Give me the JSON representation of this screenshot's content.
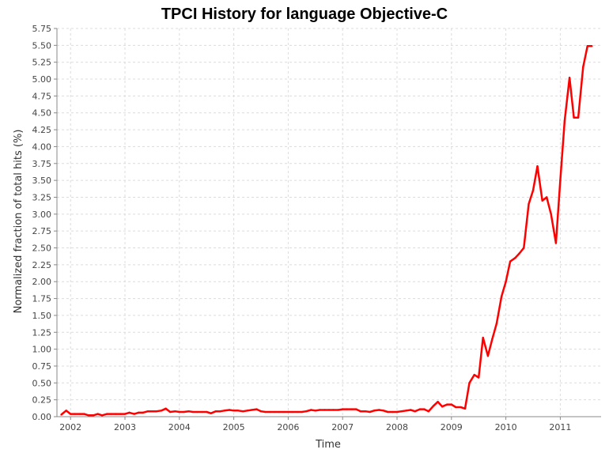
{
  "chart_data": {
    "type": "line",
    "title": "TPCI History for language Objective-C",
    "xlabel": "Time",
    "ylabel": "Normalized fraction of total hits (%)",
    "xlim": [
      2001.75,
      2011.75
    ],
    "ylim": [
      0,
      5.75
    ],
    "x_ticks": [
      "2002",
      "2003",
      "2004",
      "2005",
      "2006",
      "2007",
      "2008",
      "2009",
      "2010",
      "2011"
    ],
    "y_ticks": [
      "0.00",
      "0.25",
      "0.50",
      "0.75",
      "1.00",
      "1.25",
      "1.50",
      "1.75",
      "2.00",
      "2.25",
      "2.50",
      "2.75",
      "3.00",
      "3.25",
      "3.50",
      "3.75",
      "4.00",
      "4.25",
      "4.50",
      "4.75",
      "5.00",
      "5.25",
      "5.50",
      "5.75"
    ],
    "grid": true,
    "series_color": "#ff0000",
    "series": [
      {
        "x": [
          2001.83,
          2001.92,
          2002.0,
          2002.08,
          2002.17,
          2002.25,
          2002.33,
          2002.42,
          2002.5,
          2002.58,
          2002.67,
          2002.75,
          2002.83,
          2002.92,
          2003.0,
          2003.08,
          2003.17,
          2003.25,
          2003.33,
          2003.42,
          2003.5,
          2003.58,
          2003.67,
          2003.75,
          2003.83,
          2003.92,
          2004.0,
          2004.08,
          2004.17,
          2004.25,
          2004.33,
          2004.42,
          2004.5,
          2004.58,
          2004.67,
          2004.75,
          2004.83,
          2004.92,
          2005.0,
          2005.08,
          2005.17,
          2005.25,
          2005.33,
          2005.42,
          2005.5,
          2005.58,
          2005.67,
          2005.75,
          2005.83,
          2005.92,
          2006.0,
          2006.08,
          2006.17,
          2006.25,
          2006.33,
          2006.42,
          2006.5,
          2006.58,
          2006.67,
          2006.75,
          2006.83,
          2006.92,
          2007.0,
          2007.08,
          2007.17,
          2007.25,
          2007.33,
          2007.42,
          2007.5,
          2007.58,
          2007.67,
          2007.75,
          2007.83,
          2007.92,
          2008.0,
          2008.08,
          2008.17,
          2008.25,
          2008.33,
          2008.42,
          2008.5,
          2008.58,
          2008.67,
          2008.75,
          2008.83,
          2008.92,
          2009.0,
          2009.08,
          2009.17,
          2009.25,
          2009.33,
          2009.42,
          2009.5,
          2009.58,
          2009.67,
          2009.75,
          2009.83,
          2009.92,
          2010.0,
          2010.08,
          2010.17,
          2010.25,
          2010.33,
          2010.42,
          2010.5,
          2010.58,
          2010.67,
          2010.75,
          2010.83,
          2010.92,
          2011.0,
          2011.08,
          2011.17,
          2011.25,
          2011.33,
          2011.42,
          2011.5,
          2011.58
        ],
        "values": [
          0.03,
          0.09,
          0.04,
          0.04,
          0.04,
          0.04,
          0.02,
          0.02,
          0.04,
          0.02,
          0.04,
          0.04,
          0.04,
          0.04,
          0.04,
          0.06,
          0.04,
          0.06,
          0.06,
          0.08,
          0.08,
          0.08,
          0.09,
          0.12,
          0.07,
          0.08,
          0.07,
          0.07,
          0.08,
          0.07,
          0.07,
          0.07,
          0.07,
          0.05,
          0.08,
          0.08,
          0.09,
          0.1,
          0.09,
          0.09,
          0.08,
          0.09,
          0.1,
          0.11,
          0.08,
          0.07,
          0.07,
          0.07,
          0.07,
          0.07,
          0.07,
          0.07,
          0.07,
          0.07,
          0.08,
          0.1,
          0.09,
          0.1,
          0.1,
          0.1,
          0.1,
          0.1,
          0.11,
          0.11,
          0.11,
          0.11,
          0.08,
          0.08,
          0.07,
          0.09,
          0.1,
          0.09,
          0.07,
          0.07,
          0.07,
          0.08,
          0.09,
          0.1,
          0.08,
          0.11,
          0.11,
          0.08,
          0.16,
          0.22,
          0.15,
          0.18,
          0.18,
          0.14,
          0.14,
          0.12,
          0.5,
          0.62,
          0.58,
          1.17,
          0.9,
          1.15,
          1.38,
          1.78,
          2.0,
          2.3,
          2.35,
          2.42,
          2.5,
          3.15,
          3.35,
          3.71,
          3.2,
          3.25,
          3.0,
          2.57,
          3.5,
          4.38,
          5.02,
          4.43,
          4.43,
          5.18,
          5.49,
          5.49
        ]
      }
    ]
  }
}
